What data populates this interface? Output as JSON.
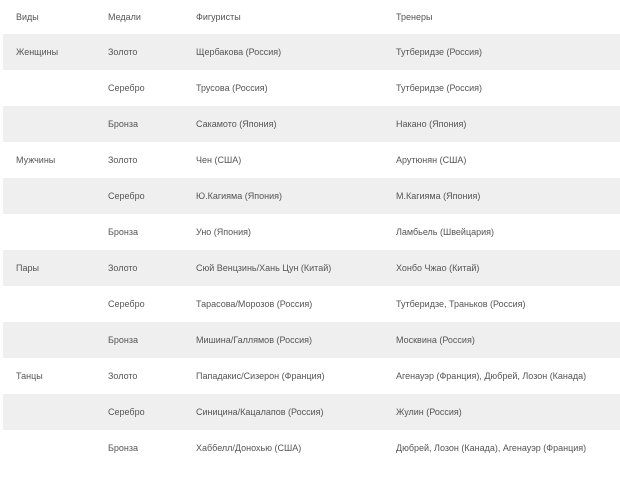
{
  "headers": [
    "Виды",
    "Медали",
    "Фигуристы",
    "Тренеры"
  ],
  "rows": [
    [
      "Женщины",
      "Золото",
      "Щербакова (Россия)",
      "Тутберидзе (Россия)"
    ],
    [
      "",
      "Серебро",
      "Трусова (Россия)",
      "Тутберидзе (Россия)"
    ],
    [
      "",
      "Бронза",
      "Сакамото (Япония)",
      "Накано (Япония)"
    ],
    [
      "Мужчины",
      "Золото",
      "Чен (США)",
      "Арутюнян (США)"
    ],
    [
      "",
      "Серебро",
      "Ю.Кагияма (Япония)",
      "М.Кагияма (Япония)"
    ],
    [
      "",
      "Бронза",
      "Уно (Япония)",
      "Ламбьель (Швейцария)"
    ],
    [
      "Пары",
      "Золото",
      "Сюй Венцзинь/Хань Цун (Китай)",
      "Хонбо Чжао (Китай)"
    ],
    [
      "",
      "Серебро",
      "Тарасова/Морозов (Россия)",
      "Тутберидзе, Траньков (Россия)"
    ],
    [
      "",
      "Бронза",
      "Мишина/Галлямов (Россия)",
      "Москвина (Россия)"
    ],
    [
      "Танцы",
      "Золото",
      "Пападакис/Сизерон (Франция)",
      "Агенауэр (Франция), Дюбрей, Лозон (Канада)"
    ],
    [
      "",
      "Серебро",
      "Синицина/Кацалапов (Россия)",
      "Жулин (Россия)"
    ],
    [
      "",
      "Бронза",
      "Хаббелл/Донохью (США)",
      "Дюбрей, Лозон (Канада), Агенауэр (Франция)"
    ]
  ],
  "colors": {
    "stripe": "#efefef",
    "text": "#555555"
  }
}
